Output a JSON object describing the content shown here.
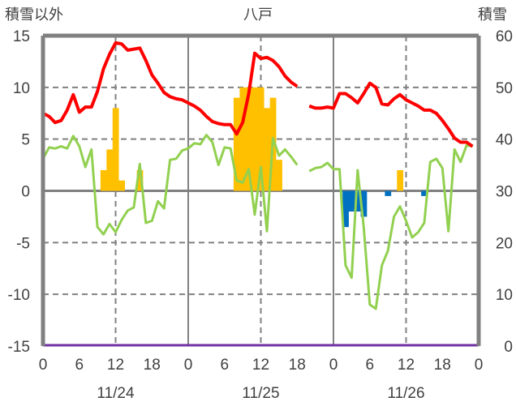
{
  "chart_data": {
    "type": "line+bar",
    "title": "八戸",
    "ylabel_left": "積雪以外",
    "ylabel_right": "積雪",
    "ylim_left": [
      -15,
      15
    ],
    "yticks_left": [
      15,
      10,
      5,
      0,
      -5,
      -10,
      -15
    ],
    "ylim_right": [
      0,
      60
    ],
    "yticks_right": [
      60,
      50,
      40,
      30,
      20,
      10,
      0
    ],
    "days": [
      "11/24",
      "11/25",
      "11/26"
    ],
    "xtick_hours": [
      0,
      6,
      12,
      18
    ],
    "xtick_end": "0",
    "grid": true,
    "colors": {
      "temp": "#ff0000",
      "green": "#92d050",
      "bar_pos": "#ffc000",
      "bar_neg": "#0070c0",
      "snow": "#7030a0",
      "axis": "#808080"
    },
    "series": [
      {
        "name": "red",
        "axis": "left",
        "values": [
          7.5,
          7.2,
          6.6,
          6.8,
          7.8,
          9.3,
          7.6,
          8.1,
          8.1,
          9.6,
          11.8,
          13.2,
          14.3,
          14.2,
          13.6,
          13.7,
          13.8,
          12.6,
          11.2,
          10.4,
          9.5,
          9.1,
          8.9,
          8.8,
          8.5,
          8.2,
          7.8,
          7.2,
          6.7,
          6.5,
          6.4,
          6.4,
          5.5,
          6.6,
          9.4,
          13.3,
          12.8,
          12.9,
          12.6,
          12.0,
          11.1,
          10.5,
          10.1,
          null,
          8.2,
          8.0,
          8.0,
          8.1,
          8.0,
          9.4,
          9.4,
          9.0,
          8.5,
          9.4,
          10.4,
          10.0,
          8.4,
          8.3,
          8.9,
          9.3,
          8.8,
          8.5,
          8.2,
          7.8,
          7.8,
          7.5,
          6.8,
          6.0,
          5.1,
          4.7,
          4.7,
          4.3
        ]
      },
      {
        "name": "green",
        "axis": "left",
        "values": [
          3.1,
          4.2,
          4.1,
          4.3,
          4.1,
          5.3,
          4.3,
          2.3,
          4.0,
          -3.5,
          -4.2,
          -3.2,
          -4.0,
          -2.8,
          -1.9,
          -1.6,
          2.6,
          -3.1,
          -2.9,
          -1.0,
          -1.7,
          3.0,
          3.1,
          3.9,
          4.1,
          4.6,
          4.5,
          5.4,
          4.7,
          2.5,
          4.2,
          4.1,
          1.0,
          0.8,
          2.1,
          -2.3,
          2.3,
          -3.9,
          5.1,
          3.4,
          4.0,
          3.3,
          2.5,
          null,
          1.9,
          2.2,
          2.3,
          2.7,
          2.1,
          2.1,
          -7.2,
          -8.4,
          2.0,
          -3.5,
          -11.0,
          -11.4,
          -7.2,
          -5.8,
          -2.5,
          -1.5,
          -2.9,
          -4.5,
          -4.0,
          -3.1,
          2.8,
          3.1,
          2.2,
          -3.9,
          4.0,
          2.8,
          4.4,
          4.3
        ]
      },
      {
        "name": "bars",
        "axis": "left",
        "values": [
          0,
          0,
          0,
          0,
          0,
          0,
          0,
          0,
          0,
          0,
          2,
          4,
          8,
          1,
          0,
          0,
          2,
          0,
          0,
          0,
          0,
          0,
          0,
          0,
          0,
          0,
          0,
          0,
          0,
          0,
          0,
          0,
          9,
          10,
          10,
          10,
          10,
          8,
          9,
          3,
          0,
          0,
          0,
          0,
          0,
          0,
          0,
          0,
          0,
          0,
          -3.5,
          -2,
          -2,
          -2.5,
          0,
          0,
          0,
          -0.5,
          0,
          2,
          0,
          0,
          0,
          -0.5,
          0,
          0,
          0,
          0,
          0,
          0,
          0,
          0
        ]
      },
      {
        "name": "snow_depth",
        "axis": "right",
        "values": [
          0,
          0
        ]
      }
    ]
  }
}
